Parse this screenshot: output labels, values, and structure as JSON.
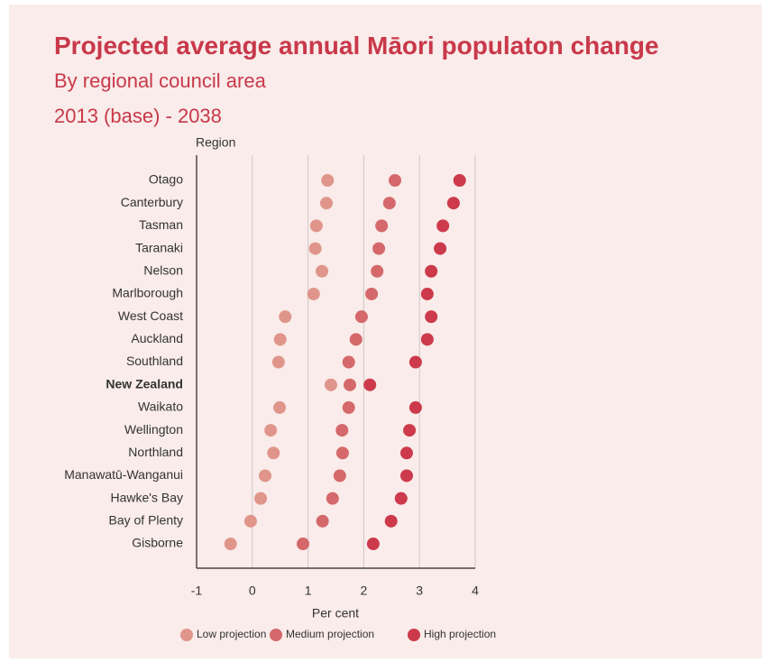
{
  "chart_data": {
    "type": "dot",
    "title": "Projected average annual Māori populaton change",
    "subtitle": [
      "By regional council area",
      "2013 (base) - 2038"
    ],
    "y_label": "Region",
    "x_label": "Per cent",
    "highlight": "New Zealand",
    "categories": [
      "Otago",
      "Canterbury",
      "Tasman",
      "Taranaki",
      "Nelson",
      "Marlborough",
      "West Coast",
      "Auckland",
      "Southland",
      "New Zealand",
      "Waikato",
      "Wellington",
      "Northland",
      "Manawatū-Wanganui",
      "Hawke's Bay",
      "Bay of Plenty",
      "Gisborne"
    ],
    "series": [
      {
        "name": "Low projection",
        "color": "#e0958b",
        "values": [
          1.35,
          1.33,
          1.15,
          1.13,
          1.25,
          1.1,
          0.59,
          0.5,
          0.47,
          1.41,
          0.49,
          0.33,
          0.38,
          0.23,
          0.15,
          -0.03,
          -0.39
        ]
      },
      {
        "name": "Medium projection",
        "color": "#d4686a",
        "values": [
          2.56,
          2.46,
          2.32,
          2.27,
          2.24,
          2.14,
          1.96,
          1.86,
          1.73,
          1.75,
          1.73,
          1.61,
          1.62,
          1.57,
          1.44,
          1.26,
          0.91
        ]
      },
      {
        "name": "High projection",
        "color": "#cc3a4b",
        "values": [
          3.72,
          3.61,
          3.42,
          3.37,
          3.21,
          3.14,
          3.21,
          3.14,
          2.93,
          2.11,
          2.93,
          2.82,
          2.77,
          2.77,
          2.67,
          2.49,
          2.17
        ]
      }
    ],
    "xlim": [
      -1,
      4
    ],
    "xticks": [
      -1,
      0,
      1,
      2,
      3,
      4
    ],
    "grid": true
  }
}
